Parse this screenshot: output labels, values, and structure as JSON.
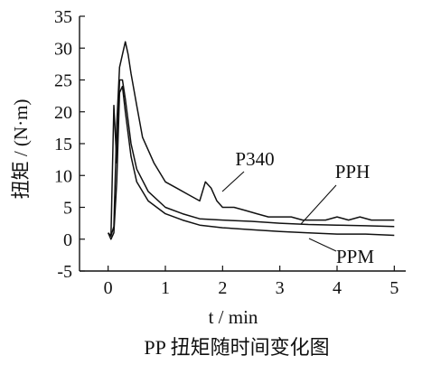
{
  "chart_data": {
    "type": "line",
    "title": "PP 扭矩随时间变化图",
    "xlabel": "t / min",
    "ylabel": "扭矩 / (N·m)",
    "xlim": [
      -0.5,
      5.2
    ],
    "ylim": [
      -5,
      35
    ],
    "x_ticks": [
      0,
      1,
      2,
      3,
      4,
      5
    ],
    "y_ticks": [
      -5,
      0,
      5,
      10,
      15,
      20,
      25,
      30,
      35
    ],
    "x_tick_labels": [
      "0",
      "1",
      "2",
      "3",
      "4",
      "5"
    ],
    "y_tick_labels": [
      "-5",
      "0",
      "5",
      "10",
      "15",
      "20",
      "25",
      "30",
      "35"
    ],
    "grid": false,
    "legend": "inline labels",
    "series": [
      {
        "name": "P340",
        "x": [
          0,
          0.05,
          0.1,
          0.15,
          0.2,
          0.25,
          0.3,
          0.35,
          0.4,
          0.5,
          0.6,
          0.8,
          1.0,
          1.2,
          1.4,
          1.6,
          1.7,
          1.8,
          1.9,
          2.0,
          2.2,
          2.4,
          2.6,
          2.8,
          3.0,
          3.2,
          3.4,
          3.6,
          3.8,
          4.0,
          4.2,
          4.4,
          4.6,
          4.8,
          5.0
        ],
        "y": [
          1,
          0.5,
          2,
          18,
          27,
          29,
          31,
          29,
          26,
          21,
          16,
          12,
          9,
          8,
          7,
          6,
          9,
          8,
          6,
          5,
          5,
          4.5,
          4,
          3.5,
          3.5,
          3.5,
          3,
          3,
          3,
          3.5,
          3,
          3.5,
          3,
          3,
          3
        ]
      },
      {
        "name": "PPH",
        "x": [
          0,
          0.05,
          0.1,
          0.15,
          0.2,
          0.25,
          0.3,
          0.4,
          0.5,
          0.7,
          1.0,
          1.3,
          1.6,
          2.0,
          2.5,
          3.0,
          3.5,
          4.0,
          4.5,
          5.0
        ],
        "y": [
          1,
          0.5,
          21,
          12,
          25,
          25,
          22,
          15,
          11,
          7.5,
          5,
          4,
          3.2,
          3,
          2.8,
          2.5,
          2.3,
          2.2,
          2.1,
          2
        ]
      },
      {
        "name": "PPM",
        "x": [
          0,
          0.05,
          0.1,
          0.15,
          0.2,
          0.25,
          0.3,
          0.4,
          0.5,
          0.7,
          1.0,
          1.3,
          1.6,
          2.0,
          2.5,
          3.0,
          3.5,
          4.0,
          4.5,
          5.0
        ],
        "y": [
          1,
          0,
          1,
          9,
          23,
          24,
          20,
          13,
          9,
          6,
          4,
          3,
          2.2,
          1.8,
          1.5,
          1.2,
          1,
          0.8,
          0.8,
          0.6
        ]
      }
    ]
  }
}
